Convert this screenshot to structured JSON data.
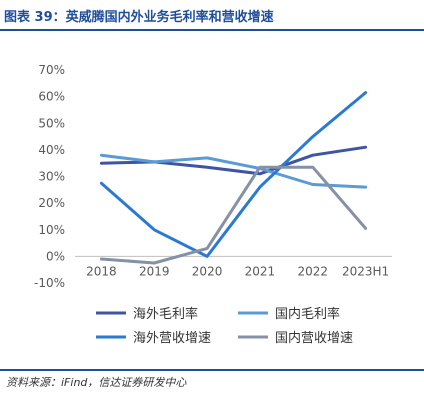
{
  "header": {
    "title": "图表 39：英威腾国内外业务毛利率和营收增速"
  },
  "footer": {
    "source": "资料来源：iFind，信达证券研发中心"
  },
  "chart_data": {
    "type": "line",
    "categories": [
      "2018",
      "2019",
      "2020",
      "2021",
      "2022",
      "2023H1"
    ],
    "ylim": [
      -10,
      70
    ],
    "yticks": [
      "-10%",
      "0%",
      "10%",
      "20%",
      "30%",
      "40%",
      "50%",
      "60%",
      "70%"
    ],
    "ytick_values": [
      -10,
      0,
      10,
      20,
      30,
      40,
      50,
      60,
      70
    ],
    "grid": false,
    "legend_position": "bottom",
    "series": [
      {
        "name": "海外毛利率",
        "color": "#3d55a3",
        "values": [
          35,
          35.5,
          33.5,
          31,
          38,
          41
        ]
      },
      {
        "name": "国内毛利率",
        "color": "#5b9bd5",
        "values": [
          38,
          35.5,
          37,
          33,
          27,
          26
        ]
      },
      {
        "name": "海外营收增速",
        "color": "#2a7ad2",
        "values": [
          27.5,
          10,
          0,
          26,
          45,
          61.5
        ]
      },
      {
        "name": "国内营收增速",
        "color": "#8491a6",
        "values": [
          -1,
          -2.5,
          3,
          33.5,
          33.5,
          10.5
        ]
      }
    ]
  }
}
